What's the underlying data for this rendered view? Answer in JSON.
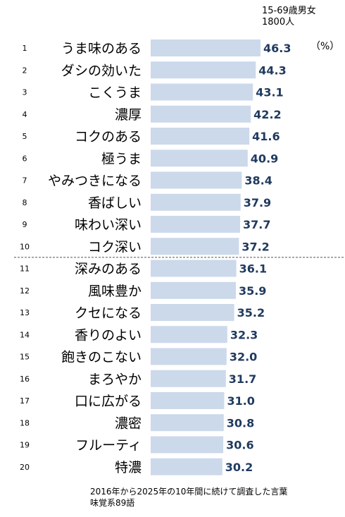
{
  "header": {
    "line1": "15-69歳男女",
    "line2": "1800人"
  },
  "unit": "（%）",
  "footer": {
    "line1": "2016年から2025年の10年間に続けて調査した言葉",
    "line2": "味覚系89語"
  },
  "colors": {
    "bar": "#ccd9eb",
    "value_text": "#1f3a5f",
    "divider": "#555555"
  },
  "chart_data": {
    "type": "bar",
    "orientation": "horizontal",
    "ranks": [
      "1",
      "2",
      "3",
      "4",
      "5",
      "6",
      "7",
      "8",
      "9",
      "10",
      "11",
      "12",
      "13",
      "14",
      "15",
      "16",
      "17",
      "18",
      "19",
      "20"
    ],
    "categories": [
      "うま味のある",
      "ダシの効いた",
      "こくうま",
      "濃厚",
      "コクのある",
      "極うま",
      "やみつきになる",
      "香ばしい",
      "味わい深い",
      "コク深い",
      "深みのある",
      "風味豊か",
      "クセになる",
      "香りのよい",
      "飽きのこない",
      "まろやか",
      "口に広がる",
      "濃密",
      "フルーティ",
      "特濃"
    ],
    "values": [
      46.3,
      44.3,
      43.1,
      42.2,
      41.6,
      40.9,
      38.4,
      37.9,
      37.7,
      37.2,
      36.1,
      35.9,
      35.2,
      32.3,
      32.0,
      31.7,
      31.0,
      30.8,
      30.6,
      30.2
    ],
    "value_labels": [
      "46.3",
      "44.3",
      "43.1",
      "42.2",
      "41.6",
      "40.9",
      "38.4",
      "37.9",
      "37.7",
      "37.2",
      "36.1",
      "35.9",
      "35.2",
      "32.3",
      "32.0",
      "31.7",
      "31.0",
      "30.8",
      "30.6",
      "30.2"
    ],
    "divider_after_rank": 10,
    "xlim": [
      0,
      46.3
    ]
  }
}
